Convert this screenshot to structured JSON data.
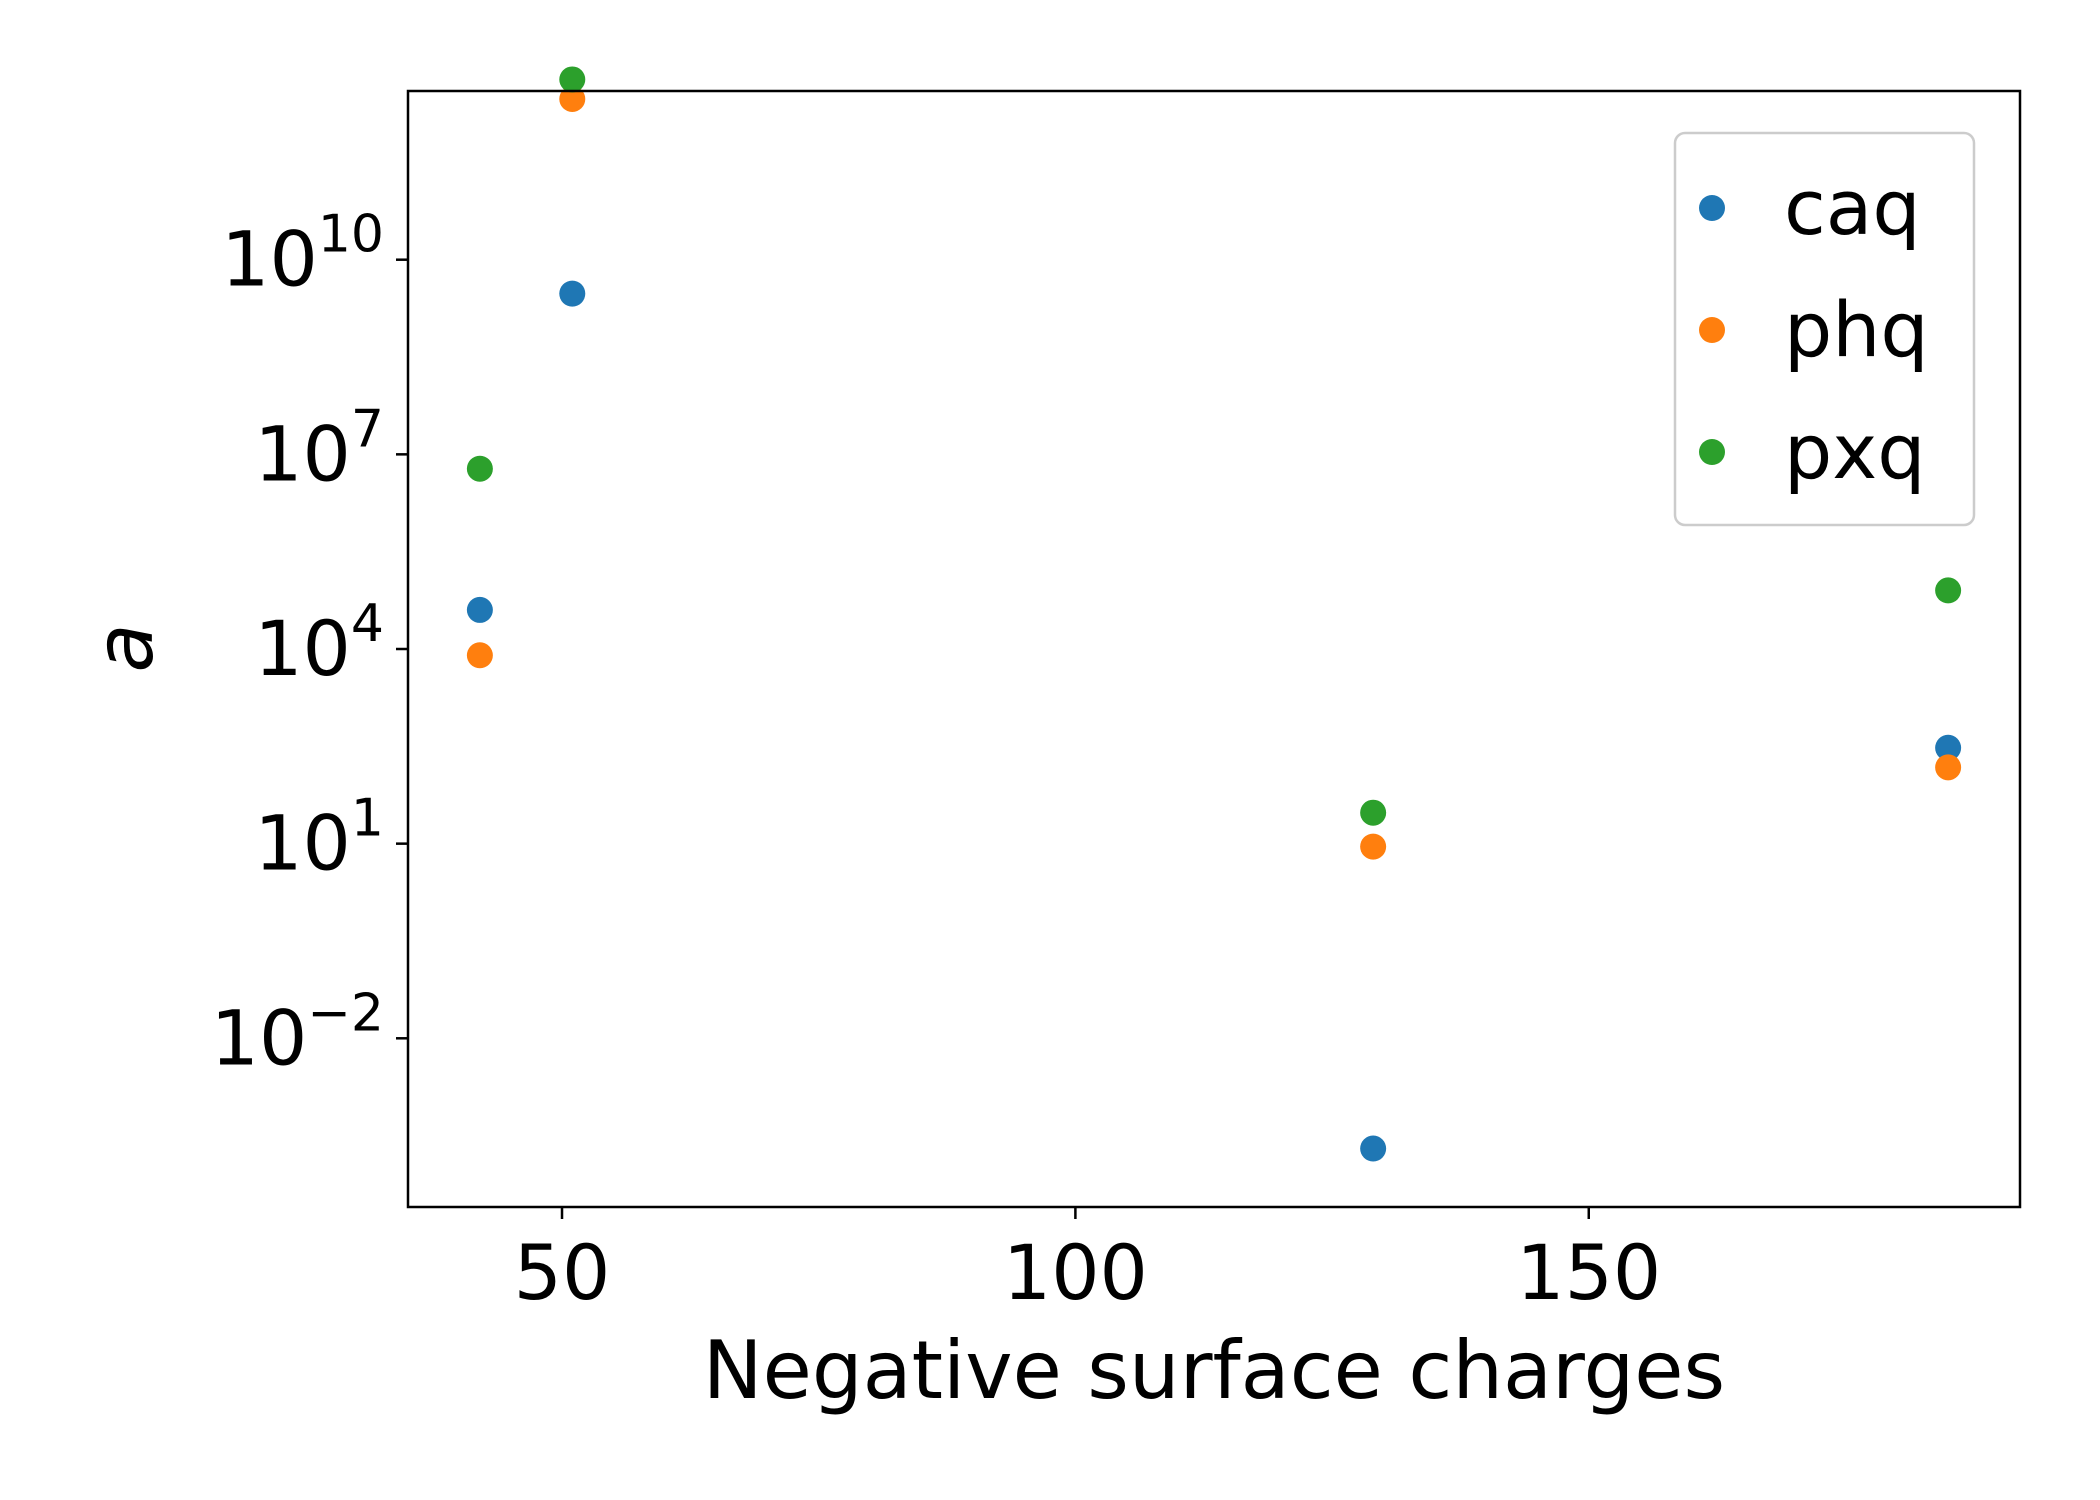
{
  "chart_data": {
    "type": "scatter",
    "title": "",
    "xlabel": "Negative surface charges",
    "ylabel": "a",
    "xlim": [
      35,
      192
    ],
    "ylim_log10": [
      -4.6,
      12.6
    ],
    "yscale": "log",
    "grid": false,
    "legend_position": "top-right",
    "x_ticks": [
      50,
      100,
      150
    ],
    "y_ticks": [
      {
        "value": -2,
        "base": "10",
        "exponent": "−2"
      },
      {
        "value": 1,
        "base": "10",
        "exponent": "1"
      },
      {
        "value": 4,
        "base": "10",
        "exponent": "4"
      },
      {
        "value": 7,
        "base": "10",
        "exponent": "7"
      },
      {
        "value": 10,
        "base": "10",
        "exponent": "10"
      }
    ],
    "series": [
      {
        "name": "caq",
        "color": "#1f77b4",
        "points": [
          [
            42,
            40000
          ],
          [
            51,
            3000000000
          ],
          [
            129,
            0.0002
          ],
          [
            185,
            300
          ]
        ]
      },
      {
        "name": "phq",
        "color": "#ff7f0e",
        "points": [
          [
            42,
            8000
          ],
          [
            51,
            3000000000000
          ],
          [
            129,
            9
          ],
          [
            185,
            150
          ]
        ]
      },
      {
        "name": "pxq",
        "color": "#2ca02c",
        "points": [
          [
            42,
            6000000
          ],
          [
            51,
            6000000000000
          ],
          [
            129,
            30
          ],
          [
            185,
            80000
          ]
        ]
      }
    ]
  }
}
